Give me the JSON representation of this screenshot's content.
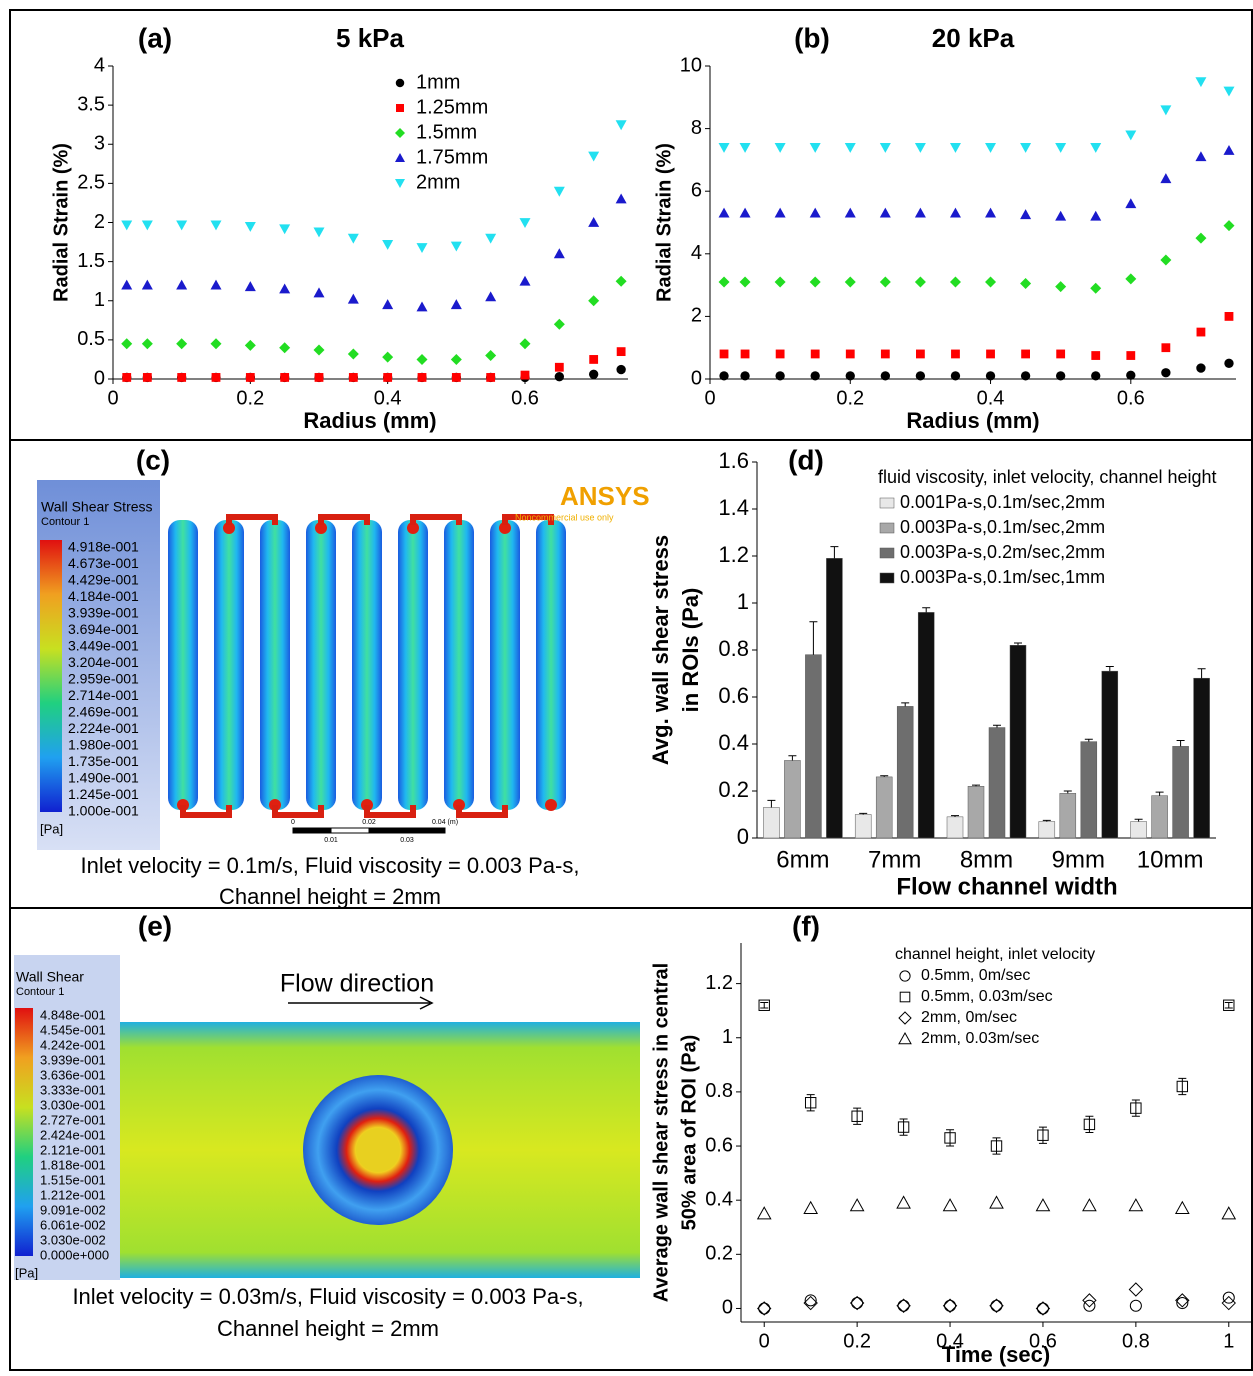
{
  "chart_data": [
    {
      "type": "scatter",
      "panel": "(a)",
      "title": "5 kPa",
      "xlabel": "Radius (mm)",
      "ylabel": "Radial Strain (%)",
      "x": [
        0.02,
        0.05,
        0.1,
        0.15,
        0.2,
        0.25,
        0.3,
        0.35,
        0.4,
        0.45,
        0.5,
        0.55,
        0.6,
        0.65,
        0.7,
        0.74
      ],
      "xlim": [
        0,
        0.75
      ],
      "xticks": [
        0,
        0.2,
        0.4,
        0.6
      ],
      "ylim": [
        0,
        4
      ],
      "yticks": [
        0,
        0.5,
        1,
        1.5,
        2,
        2.5,
        3,
        3.5,
        4
      ],
      "legend": "upper center",
      "series": [
        {
          "name": "1mm",
          "color": "#000000",
          "marker": "circle",
          "values": [
            0.02,
            0.02,
            0.02,
            0.02,
            0.02,
            0.02,
            0.02,
            0.02,
            0.02,
            0.02,
            0.02,
            0.02,
            0.02,
            0.03,
            0.06,
            0.12
          ]
        },
        {
          "name": "1.25mm",
          "color": "#ff0000",
          "marker": "square",
          "values": [
            0.02,
            0.02,
            0.02,
            0.02,
            0.02,
            0.02,
            0.02,
            0.02,
            0.02,
            0.02,
            0.02,
            0.02,
            0.05,
            0.15,
            0.25,
            0.35
          ]
        },
        {
          "name": "1.5mm",
          "color": "#22dd22",
          "marker": "diamond",
          "values": [
            0.45,
            0.45,
            0.45,
            0.45,
            0.43,
            0.4,
            0.37,
            0.32,
            0.28,
            0.25,
            0.25,
            0.3,
            0.45,
            0.7,
            1,
            1.25
          ]
        },
        {
          "name": "1.75mm",
          "color": "#1a1acc",
          "marker": "triangle",
          "values": [
            1.2,
            1.2,
            1.2,
            1.2,
            1.18,
            1.15,
            1.1,
            1.02,
            0.95,
            0.92,
            0.95,
            1.05,
            1.25,
            1.6,
            2,
            2.3
          ]
        },
        {
          "name": "2mm",
          "color": "#22e0f0",
          "marker": "triangle-down",
          "values": [
            1.97,
            1.97,
            1.97,
            1.97,
            1.95,
            1.92,
            1.88,
            1.8,
            1.72,
            1.68,
            1.7,
            1.8,
            2,
            2.4,
            2.85,
            3.25
          ]
        }
      ]
    },
    {
      "type": "scatter",
      "panel": "(b)",
      "title": "20 kPa",
      "xlabel": "Radius (mm)",
      "ylabel": "Radial Strain (%)",
      "x": [
        0.02,
        0.05,
        0.1,
        0.15,
        0.2,
        0.25,
        0.3,
        0.35,
        0.4,
        0.45,
        0.5,
        0.55,
        0.6,
        0.65,
        0.7,
        0.74
      ],
      "xlim": [
        0,
        0.75
      ],
      "xticks": [
        0,
        0.2,
        0.4,
        0.6
      ],
      "ylim": [
        0,
        10
      ],
      "yticks": [
        0,
        2,
        4,
        6,
        8,
        10
      ],
      "series": [
        {
          "color": "#000000",
          "marker": "circle",
          "values": [
            0.1,
            0.1,
            0.1,
            0.1,
            0.1,
            0.1,
            0.1,
            0.1,
            0.1,
            0.1,
            0.1,
            0.1,
            0.12,
            0.2,
            0.35,
            0.5
          ]
        },
        {
          "color": "#ff0000",
          "marker": "square",
          "values": [
            0.8,
            0.8,
            0.8,
            0.8,
            0.8,
            0.8,
            0.8,
            0.8,
            0.8,
            0.8,
            0.8,
            0.75,
            0.75,
            1,
            1.5,
            2
          ]
        },
        {
          "color": "#22dd22",
          "marker": "diamond",
          "values": [
            3.1,
            3.1,
            3.1,
            3.1,
            3.1,
            3.1,
            3.1,
            3.1,
            3.1,
            3.05,
            2.95,
            2.9,
            3.2,
            3.8,
            4.5,
            4.9
          ]
        },
        {
          "color": "#1a1acc",
          "marker": "triangle",
          "values": [
            5.3,
            5.3,
            5.3,
            5.3,
            5.3,
            5.3,
            5.3,
            5.3,
            5.3,
            5.25,
            5.2,
            5.2,
            5.6,
            6.4,
            7.1,
            7.3
          ]
        },
        {
          "color": "#22e0f0",
          "marker": "triangle-down",
          "values": [
            7.4,
            7.4,
            7.4,
            7.4,
            7.4,
            7.4,
            7.4,
            7.4,
            7.4,
            7.4,
            7.4,
            7.4,
            7.8,
            8.6,
            9.5,
            9.2
          ]
        }
      ]
    },
    {
      "type": "bar",
      "panel": "(d)",
      "xlabel": "Flow channel width",
      "ylabel": [
        "Avg. wall shear stress",
        "in ROIs (Pa)"
      ],
      "legend_title": "fluid viscosity, inlet velocity, channel height",
      "categories": [
        "6mm",
        "7mm",
        "8mm",
        "9mm",
        "10mm"
      ],
      "ylim": [
        0,
        1.6
      ],
      "yticks": [
        0,
        0.2,
        0.4,
        0.6,
        0.8,
        1,
        1.2,
        1.4,
        1.6
      ],
      "series": [
        {
          "name": "0.001Pa-s,0.1m/sec,2mm",
          "color": "#e8e8e8",
          "values": [
            0.13,
            0.1,
            0.09,
            0.07,
            0.07
          ],
          "errors": [
            0.03,
            0.005,
            0.005,
            0.005,
            0.01
          ]
        },
        {
          "name": "0.003Pa-s,0.1m/sec,2mm",
          "color": "#a8a8a8",
          "values": [
            0.33,
            0.26,
            0.22,
            0.19,
            0.18
          ],
          "errors": [
            0.02,
            0.005,
            0.005,
            0.01,
            0.015
          ]
        },
        {
          "name": "0.003Pa-s,0.2m/sec,2mm",
          "color": "#6e6e6e",
          "values": [
            0.78,
            0.56,
            0.47,
            0.41,
            0.39
          ],
          "errors": [
            0.14,
            0.015,
            0.01,
            0.01,
            0.025
          ]
        },
        {
          "name": "0.003Pa-s,0.1m/sec,1mm",
          "color": "#111111",
          "values": [
            1.19,
            0.96,
            0.82,
            0.71,
            0.68
          ],
          "errors": [
            0.05,
            0.02,
            0.01,
            0.02,
            0.04
          ]
        }
      ]
    },
    {
      "type": "scatter",
      "panel": "(f)",
      "xlabel": "Time (sec)",
      "ylabel": [
        "Average wall shear stress in central",
        "50% area of ROI (Pa)"
      ],
      "legend_title": "channel height, inlet velocity",
      "x": [
        0,
        0.1,
        0.2,
        0.3,
        0.4,
        0.5,
        0.6,
        0.7,
        0.8,
        0.9,
        1
      ],
      "xlim": [
        -0.05,
        1.05
      ],
      "xticks": [
        0,
        0.2,
        0.4,
        0.6,
        0.8,
        1
      ],
      "ylim": [
        -0.05,
        1.35
      ],
      "yticks": [
        0,
        0.2,
        0.4,
        0.6,
        0.8,
        1,
        1.2
      ],
      "series": [
        {
          "name": "0.5mm, 0m/sec",
          "color": "#000000",
          "marker": "circle",
          "values": [
            0,
            0.03,
            0.02,
            0.01,
            0.01,
            0.01,
            0,
            0.01,
            0.01,
            0.02,
            0.04
          ]
        },
        {
          "name": "0.5mm, 0.03m/sec",
          "color": "#000000",
          "marker": "square",
          "values": [
            1.12,
            0.76,
            0.71,
            0.67,
            0.63,
            0.6,
            0.64,
            0.68,
            0.74,
            0.82,
            1.12
          ],
          "errors": [
            0.01,
            0.03,
            0.03,
            0.03,
            0.03,
            0.03,
            0.03,
            0.03,
            0.03,
            0.03,
            0.01
          ]
        },
        {
          "name": "2mm, 0m/sec",
          "color": "#000000",
          "marker": "diamond",
          "values": [
            0,
            0.02,
            0.02,
            0.01,
            0.01,
            0.01,
            0,
            0.03,
            0.07,
            0.03,
            0.02
          ]
        },
        {
          "name": "2mm, 0.03m/sec",
          "color": "#000000",
          "marker": "triangle",
          "values": [
            0.35,
            0.37,
            0.38,
            0.39,
            0.38,
            0.39,
            0.38,
            0.38,
            0.38,
            0.37,
            0.35
          ]
        }
      ]
    }
  ],
  "simulations": [
    {
      "panel": "(c)",
      "legend_title": "Wall Shear Stress",
      "legend_subtitle": "Contour 1",
      "levels": [
        "4.918e-001",
        "4.673e-001",
        "4.429e-001",
        "4.184e-001",
        "3.939e-001",
        "3.694e-001",
        "3.449e-001",
        "3.204e-001",
        "2.959e-001",
        "2.714e-001",
        "2.469e-001",
        "2.224e-001",
        "1.980e-001",
        "1.735e-001",
        "1.490e-001",
        "1.245e-001",
        "1.000e-001"
      ],
      "unit": "[Pa]",
      "logo": "ANSYS",
      "logo_note": "Noncommercial use only",
      "scale": [
        "0",
        "0.01",
        "0.02",
        "0.03",
        "0.04 (m)"
      ],
      "caption": [
        "Inlet velocity = 0.1m/s, Fluid viscosity = 0.003 Pa-s,",
        "Channel height = 2mm"
      ]
    },
    {
      "panel": "(e)",
      "legend_title": "Wall Shear",
      "legend_subtitle": "Contour 1",
      "levels": [
        "4.848e-001",
        "4.545e-001",
        "4.242e-001",
        "3.939e-001",
        "3.636e-001",
        "3.333e-001",
        "3.030e-001",
        "2.727e-001",
        "2.424e-001",
        "2.121e-001",
        "1.818e-001",
        "1.515e-001",
        "1.212e-001",
        "9.091e-002",
        "6.061e-002",
        "3.030e-002",
        "0.000e+000"
      ],
      "unit": "[Pa]",
      "annotation": "Flow direction",
      "caption": [
        "Inlet velocity = 0.03m/s, Fluid viscosity = 0.003 Pa-s,",
        "Channel height = 2mm"
      ]
    }
  ]
}
